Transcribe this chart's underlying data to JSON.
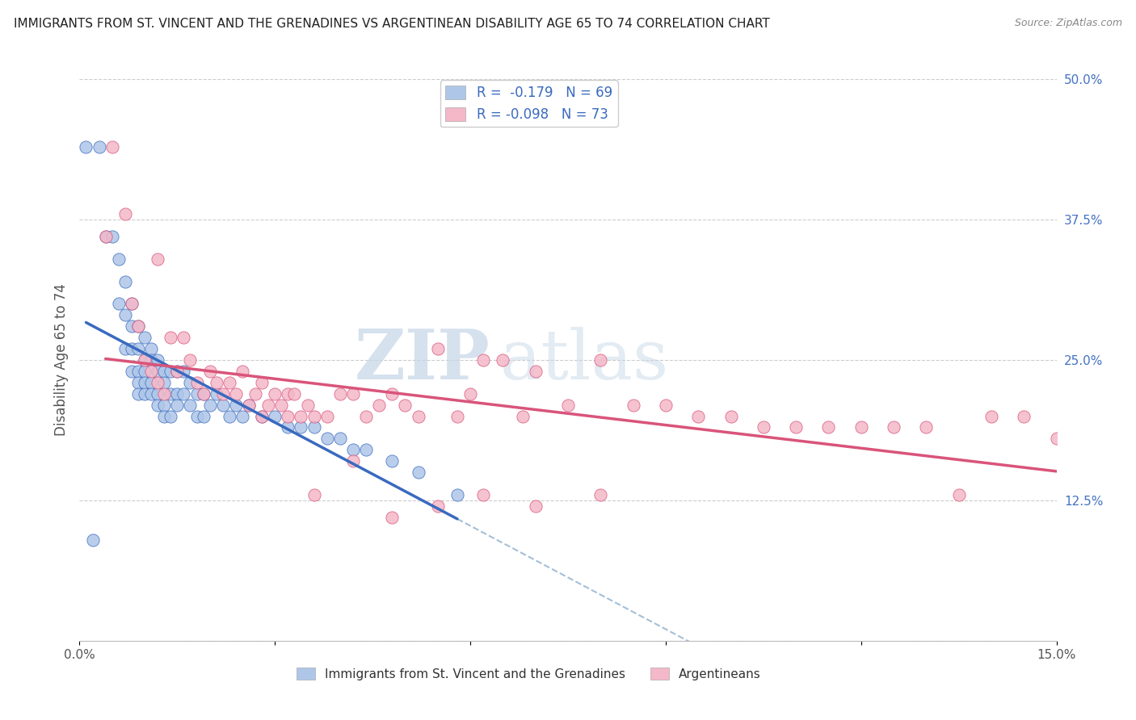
{
  "title": "IMMIGRANTS FROM ST. VINCENT AND THE GRENADINES VS ARGENTINEAN DISABILITY AGE 65 TO 74 CORRELATION CHART",
  "source": "Source: ZipAtlas.com",
  "ylabel": "Disability Age 65 to 74",
  "xlim": [
    0.0,
    0.15
  ],
  "ylim": [
    0.0,
    0.5
  ],
  "yticks_right": [
    0.0,
    0.125,
    0.25,
    0.375,
    0.5
  ],
  "ytick_labels_right": [
    "",
    "12.5%",
    "25.0%",
    "37.5%",
    "50.0%"
  ],
  "blue_R": -0.179,
  "blue_N": 69,
  "pink_R": -0.098,
  "pink_N": 73,
  "blue_color": "#aec6e8",
  "pink_color": "#f4b8c8",
  "blue_line_color": "#3a6abf",
  "pink_line_color": "#d9547a",
  "dashed_line_color": "#9ab8d4",
  "watermark_zip": "ZIP",
  "watermark_atlas": "atlas",
  "blue_scatter_x": [
    0.001,
    0.003,
    0.004,
    0.005,
    0.006,
    0.006,
    0.007,
    0.007,
    0.007,
    0.008,
    0.008,
    0.008,
    0.008,
    0.009,
    0.009,
    0.009,
    0.009,
    0.009,
    0.01,
    0.01,
    0.01,
    0.01,
    0.01,
    0.011,
    0.011,
    0.011,
    0.011,
    0.012,
    0.012,
    0.012,
    0.012,
    0.013,
    0.013,
    0.013,
    0.013,
    0.014,
    0.014,
    0.014,
    0.015,
    0.015,
    0.015,
    0.016,
    0.016,
    0.017,
    0.017,
    0.018,
    0.018,
    0.019,
    0.019,
    0.02,
    0.021,
    0.022,
    0.023,
    0.024,
    0.025,
    0.026,
    0.028,
    0.03,
    0.032,
    0.034,
    0.036,
    0.038,
    0.04,
    0.042,
    0.044,
    0.048,
    0.052,
    0.058,
    0.002
  ],
  "blue_scatter_y": [
    0.44,
    0.44,
    0.36,
    0.36,
    0.34,
    0.3,
    0.32,
    0.29,
    0.26,
    0.3,
    0.28,
    0.26,
    0.24,
    0.28,
    0.26,
    0.24,
    0.23,
    0.22,
    0.27,
    0.25,
    0.24,
    0.23,
    0.22,
    0.26,
    0.25,
    0.23,
    0.22,
    0.25,
    0.24,
    0.22,
    0.21,
    0.24,
    0.23,
    0.21,
    0.2,
    0.24,
    0.22,
    0.2,
    0.24,
    0.22,
    0.21,
    0.24,
    0.22,
    0.23,
    0.21,
    0.22,
    0.2,
    0.22,
    0.2,
    0.21,
    0.22,
    0.21,
    0.2,
    0.21,
    0.2,
    0.21,
    0.2,
    0.2,
    0.19,
    0.19,
    0.19,
    0.18,
    0.18,
    0.17,
    0.17,
    0.16,
    0.15,
    0.13,
    0.09
  ],
  "pink_scatter_x": [
    0.004,
    0.005,
    0.007,
    0.008,
    0.009,
    0.01,
    0.011,
    0.012,
    0.012,
    0.013,
    0.014,
    0.015,
    0.016,
    0.017,
    0.018,
    0.019,
    0.02,
    0.021,
    0.022,
    0.023,
    0.024,
    0.025,
    0.026,
    0.027,
    0.028,
    0.029,
    0.03,
    0.031,
    0.032,
    0.033,
    0.034,
    0.035,
    0.036,
    0.038,
    0.04,
    0.042,
    0.044,
    0.046,
    0.048,
    0.05,
    0.052,
    0.055,
    0.058,
    0.06,
    0.062,
    0.065,
    0.068,
    0.07,
    0.075,
    0.08,
    0.085,
    0.09,
    0.095,
    0.1,
    0.105,
    0.11,
    0.115,
    0.12,
    0.125,
    0.13,
    0.135,
    0.14,
    0.145,
    0.15,
    0.028,
    0.032,
    0.036,
    0.042,
    0.048,
    0.055,
    0.062,
    0.07,
    0.08
  ],
  "pink_scatter_y": [
    0.36,
    0.44,
    0.38,
    0.3,
    0.28,
    0.25,
    0.24,
    0.23,
    0.34,
    0.22,
    0.27,
    0.24,
    0.27,
    0.25,
    0.23,
    0.22,
    0.24,
    0.23,
    0.22,
    0.23,
    0.22,
    0.24,
    0.21,
    0.22,
    0.23,
    0.21,
    0.22,
    0.21,
    0.22,
    0.22,
    0.2,
    0.21,
    0.2,
    0.2,
    0.22,
    0.22,
    0.2,
    0.21,
    0.22,
    0.21,
    0.2,
    0.26,
    0.2,
    0.22,
    0.25,
    0.25,
    0.2,
    0.24,
    0.21,
    0.25,
    0.21,
    0.21,
    0.2,
    0.2,
    0.19,
    0.19,
    0.19,
    0.19,
    0.19,
    0.19,
    0.13,
    0.2,
    0.2,
    0.18,
    0.2,
    0.2,
    0.13,
    0.16,
    0.11,
    0.12,
    0.13,
    0.12,
    0.13
  ]
}
